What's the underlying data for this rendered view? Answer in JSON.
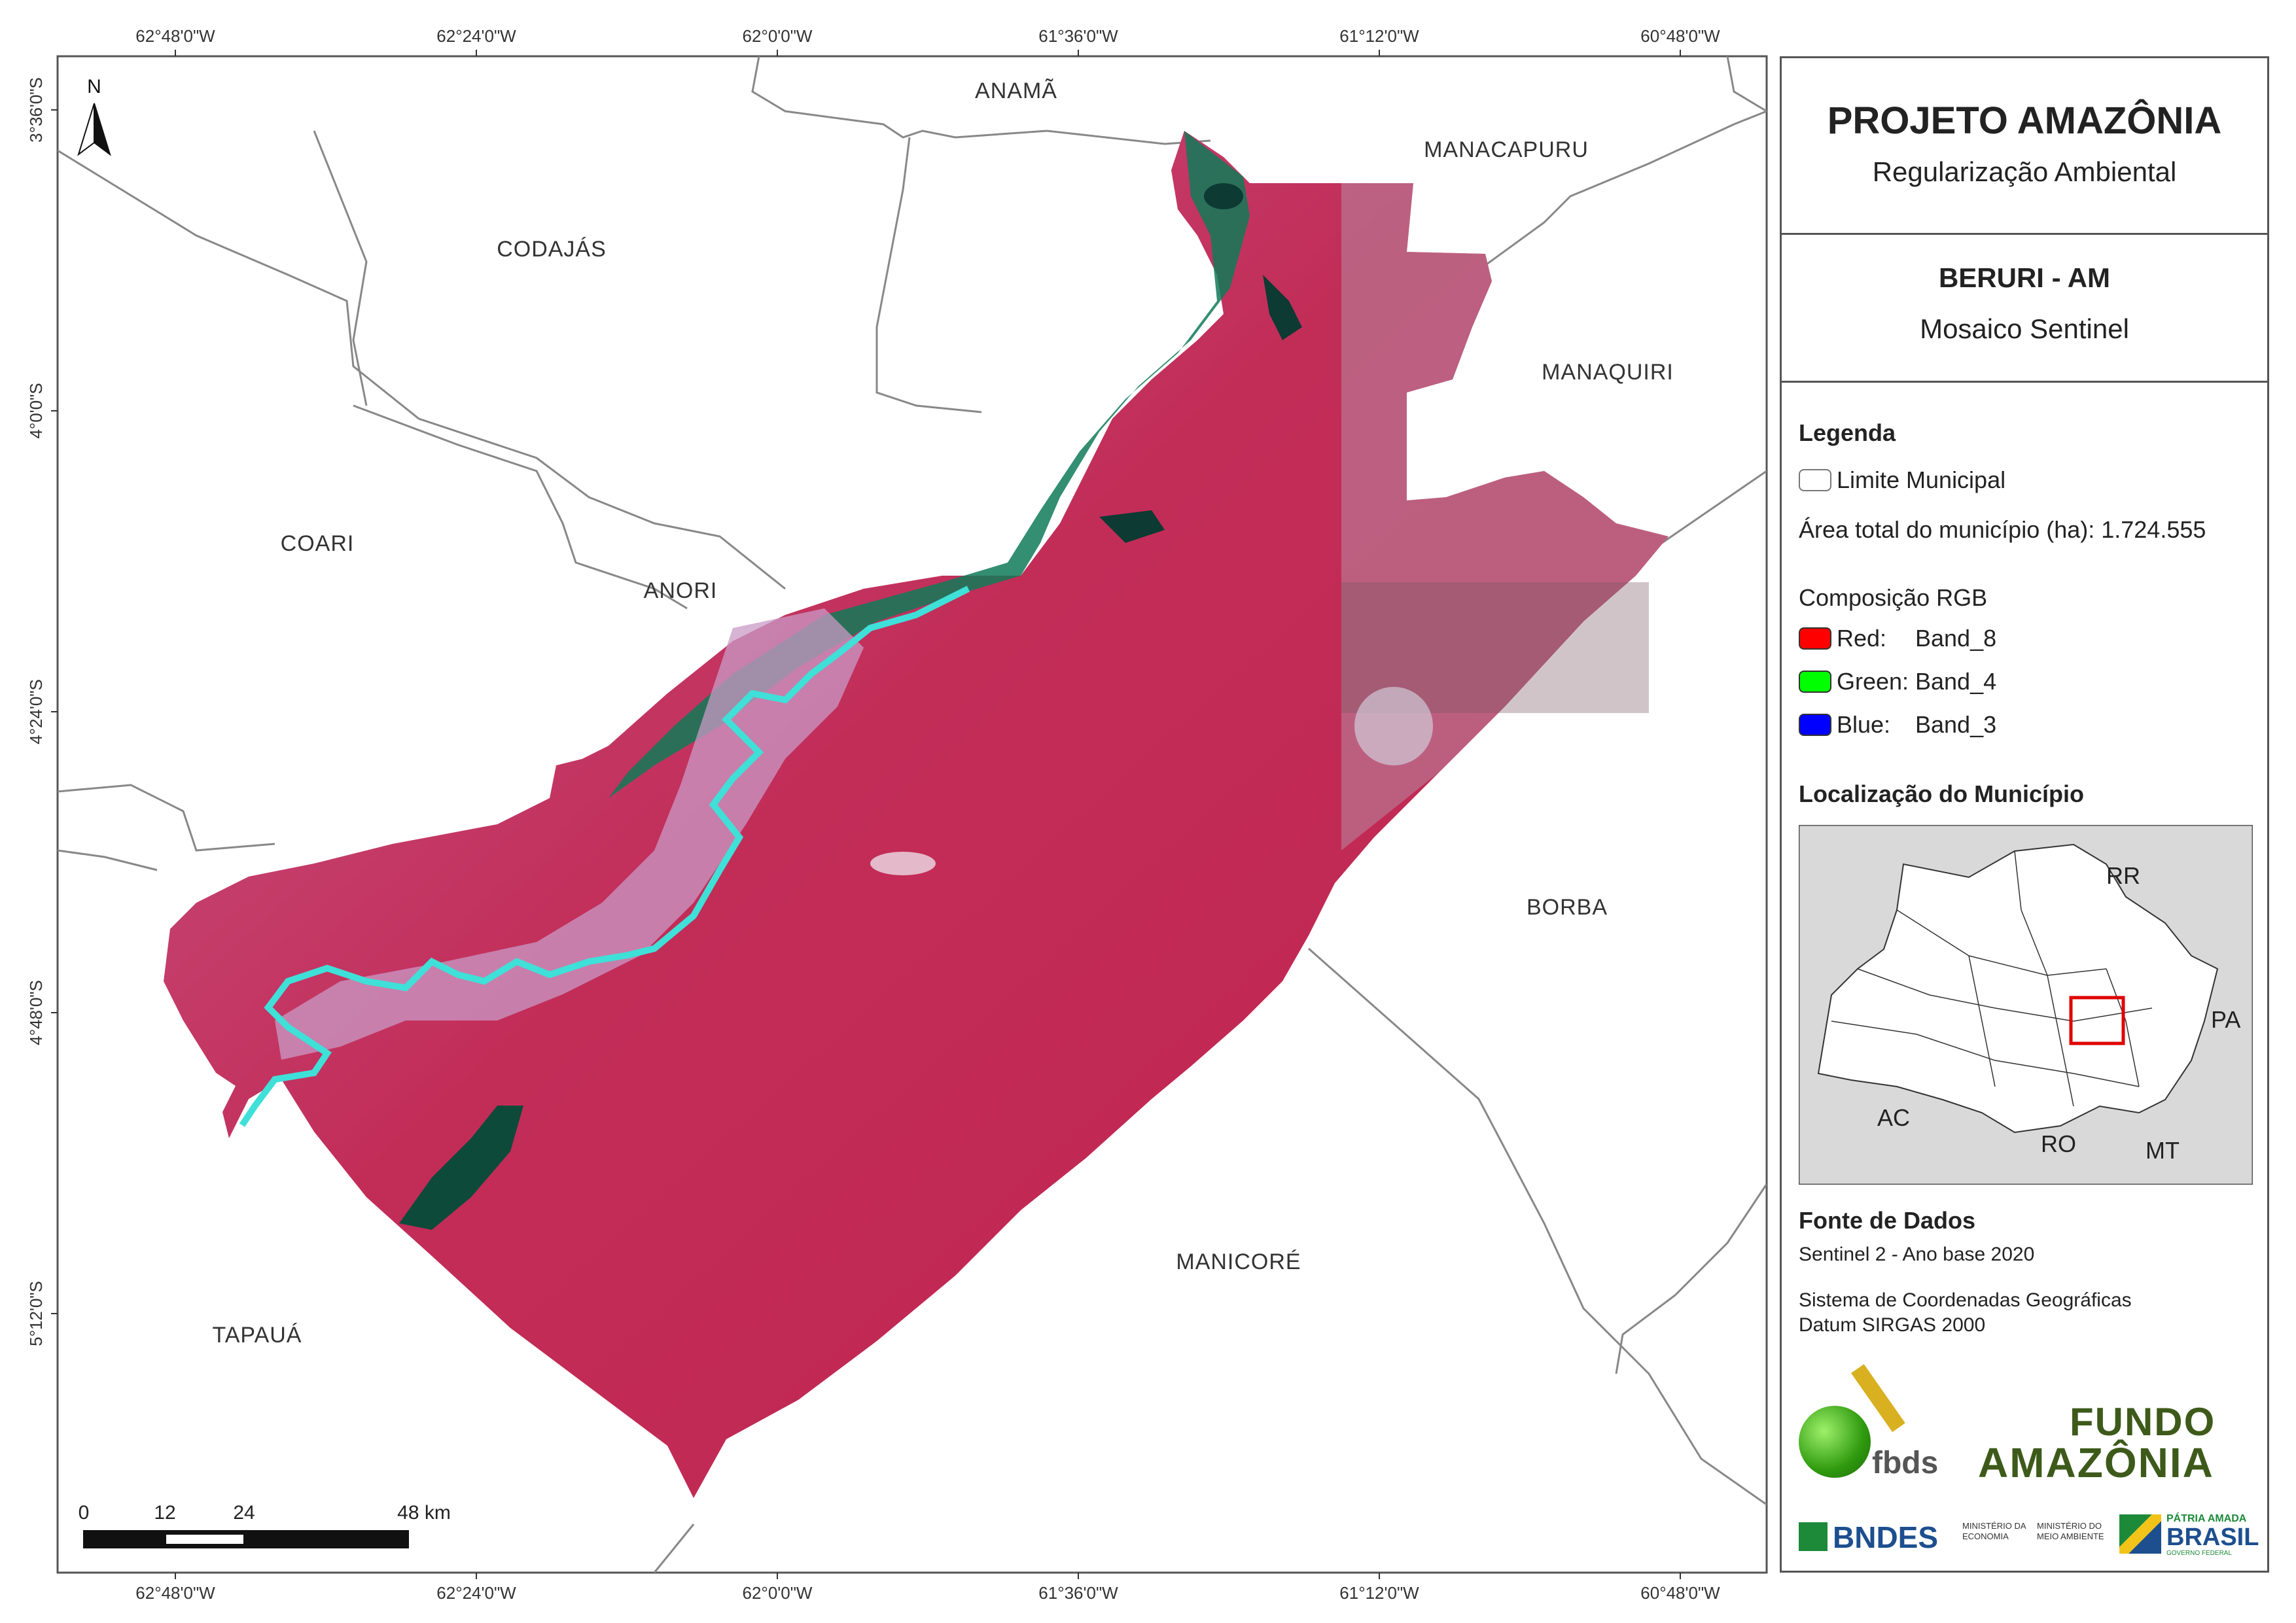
{
  "map": {
    "colors": {
      "land_surround": "#ffffff",
      "mosaic_red": "#c41e4f",
      "mosaic_pink": "#c45a8a",
      "water_cyan": "#3fe0d8",
      "forest_green": "#0f6a4e",
      "boundary": "#888888"
    },
    "top_coords": [
      "62°48'0\"W",
      "62°24'0\"W",
      "62°0'0\"W",
      "61°36'0\"W",
      "61°12'0\"W",
      "60°48'0\"W"
    ],
    "bottom_coords": [
      "62°48'0\"W",
      "62°24'0\"W",
      "62°0'0\"W",
      "61°36'0\"W",
      "61°12'0\"W",
      "60°48'0\"W"
    ],
    "left_coords": [
      "3°36'0\"S",
      "4°0'0\"S",
      "4°24'0\"S",
      "4°48'0\"S",
      "5°12'0\"S"
    ],
    "north_label": "N",
    "municipalities": {
      "anama": "ANAMÃ",
      "manacapuru": "MANACAPURU",
      "codajas": "CODAJÁS",
      "manaquiri": "MANAQUIRI",
      "coari": "COARI",
      "anori": "ANORI",
      "borba": "BORBA",
      "manicore": "MANICORÉ",
      "tapaua": "TAPAUÁ"
    },
    "scale": {
      "labels": [
        "0",
        "12",
        "24",
        "48 km"
      ]
    }
  },
  "panel": {
    "title": "PROJETO AMAZÔNIA",
    "subtitle": "Regularização Ambiental",
    "municipality": "BERURI - AM",
    "mosaic": "Mosaico Sentinel",
    "legend_header": "Legenda",
    "legend_limit": "Limite Municipal",
    "legend_area": "Área total do município (ha): 1.724.555",
    "rgb_header": "Composição RGB",
    "bands": [
      {
        "label": "Red:",
        "band": "Band_8",
        "color": "#ff0000"
      },
      {
        "label": "Green:",
        "band": "Band_4",
        "color": "#00ff00"
      },
      {
        "label": "Blue:",
        "band": "Band_3",
        "color": "#0000ff"
      }
    ],
    "location_header": "Localização do Município",
    "location_map": {
      "states": [
        "RR",
        "PA",
        "AC",
        "RO",
        "MT"
      ],
      "highlight_color": "#e00000"
    },
    "sources_header": "Fonte de Dados",
    "source_sentinel": "Sentinel 2 - Ano base 2020",
    "coord_system": "Sistema de Coordenadas Geográficas",
    "datum": "Datum SIRGAS 2000",
    "logos": {
      "fbds": "fbds",
      "fundo_line1": "FUNDO",
      "fundo_line2": "AMAZÔNIA",
      "bndes": "BNDES",
      "ministerio_economia_1": "MINISTÉRIO DA",
      "ministerio_economia_2": "ECONOMIA",
      "ministerio_ambiente_1": "MINISTÉRIO DO",
      "ministerio_ambiente_2": "MEIO AMBIENTE",
      "patria_1": "PÁTRIA AMADA",
      "patria_2": "BRASIL",
      "patria_3": "GOVERNO FEDERAL"
    }
  }
}
